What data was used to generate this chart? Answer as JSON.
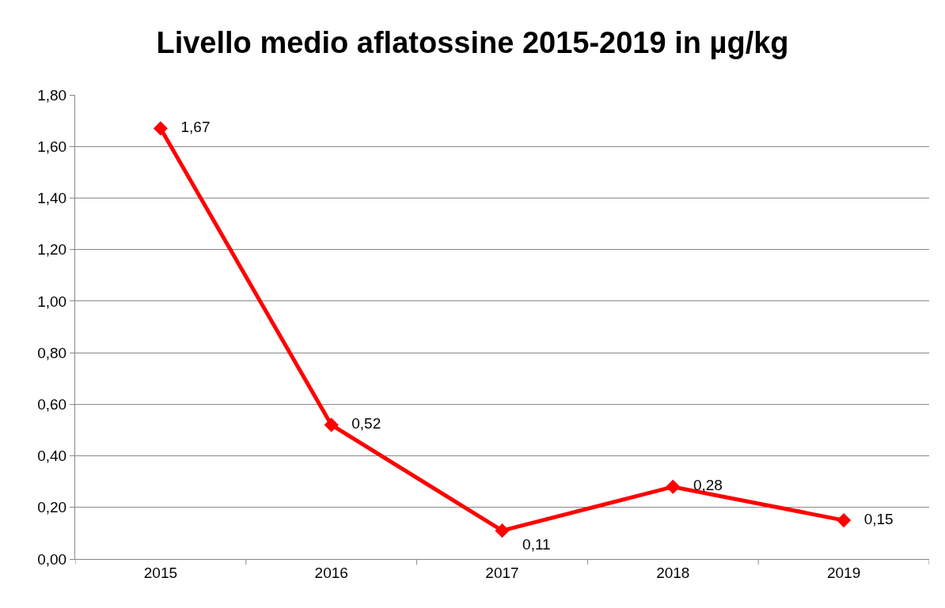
{
  "chart_data": {
    "type": "line",
    "title": "Livello medio aflatossine 2015-2019 in µg/kg",
    "categories": [
      "2015",
      "2016",
      "2017",
      "2018",
      "2019"
    ],
    "series": [
      {
        "color": "#ff0000",
        "values": [
          1.67,
          0.52,
          0.11,
          0.28,
          0.15
        ],
        "value_labels": [
          "1,67",
          "0,52",
          "0,11",
          "0,28",
          "0,15"
        ]
      }
    ],
    "ylim": [
      0,
      1.8
    ],
    "yticks": [
      {
        "value": 0,
        "label": "0,00"
      },
      {
        "value": 0.2,
        "label": "0,20"
      },
      {
        "value": 0.4,
        "label": "0,40"
      },
      {
        "value": 0.6,
        "label": "0,60"
      },
      {
        "value": 0.8,
        "label": "0,80"
      },
      {
        "value": 1,
        "label": "1,00"
      },
      {
        "value": 1.2,
        "label": "1,20"
      },
      {
        "value": 1.4,
        "label": "1,40"
      },
      {
        "value": 1.6,
        "label": "1,60"
      },
      {
        "value": 1.8,
        "label": "1,80"
      }
    ],
    "grid": "y",
    "marker": "diamond",
    "line_style": "solid"
  }
}
